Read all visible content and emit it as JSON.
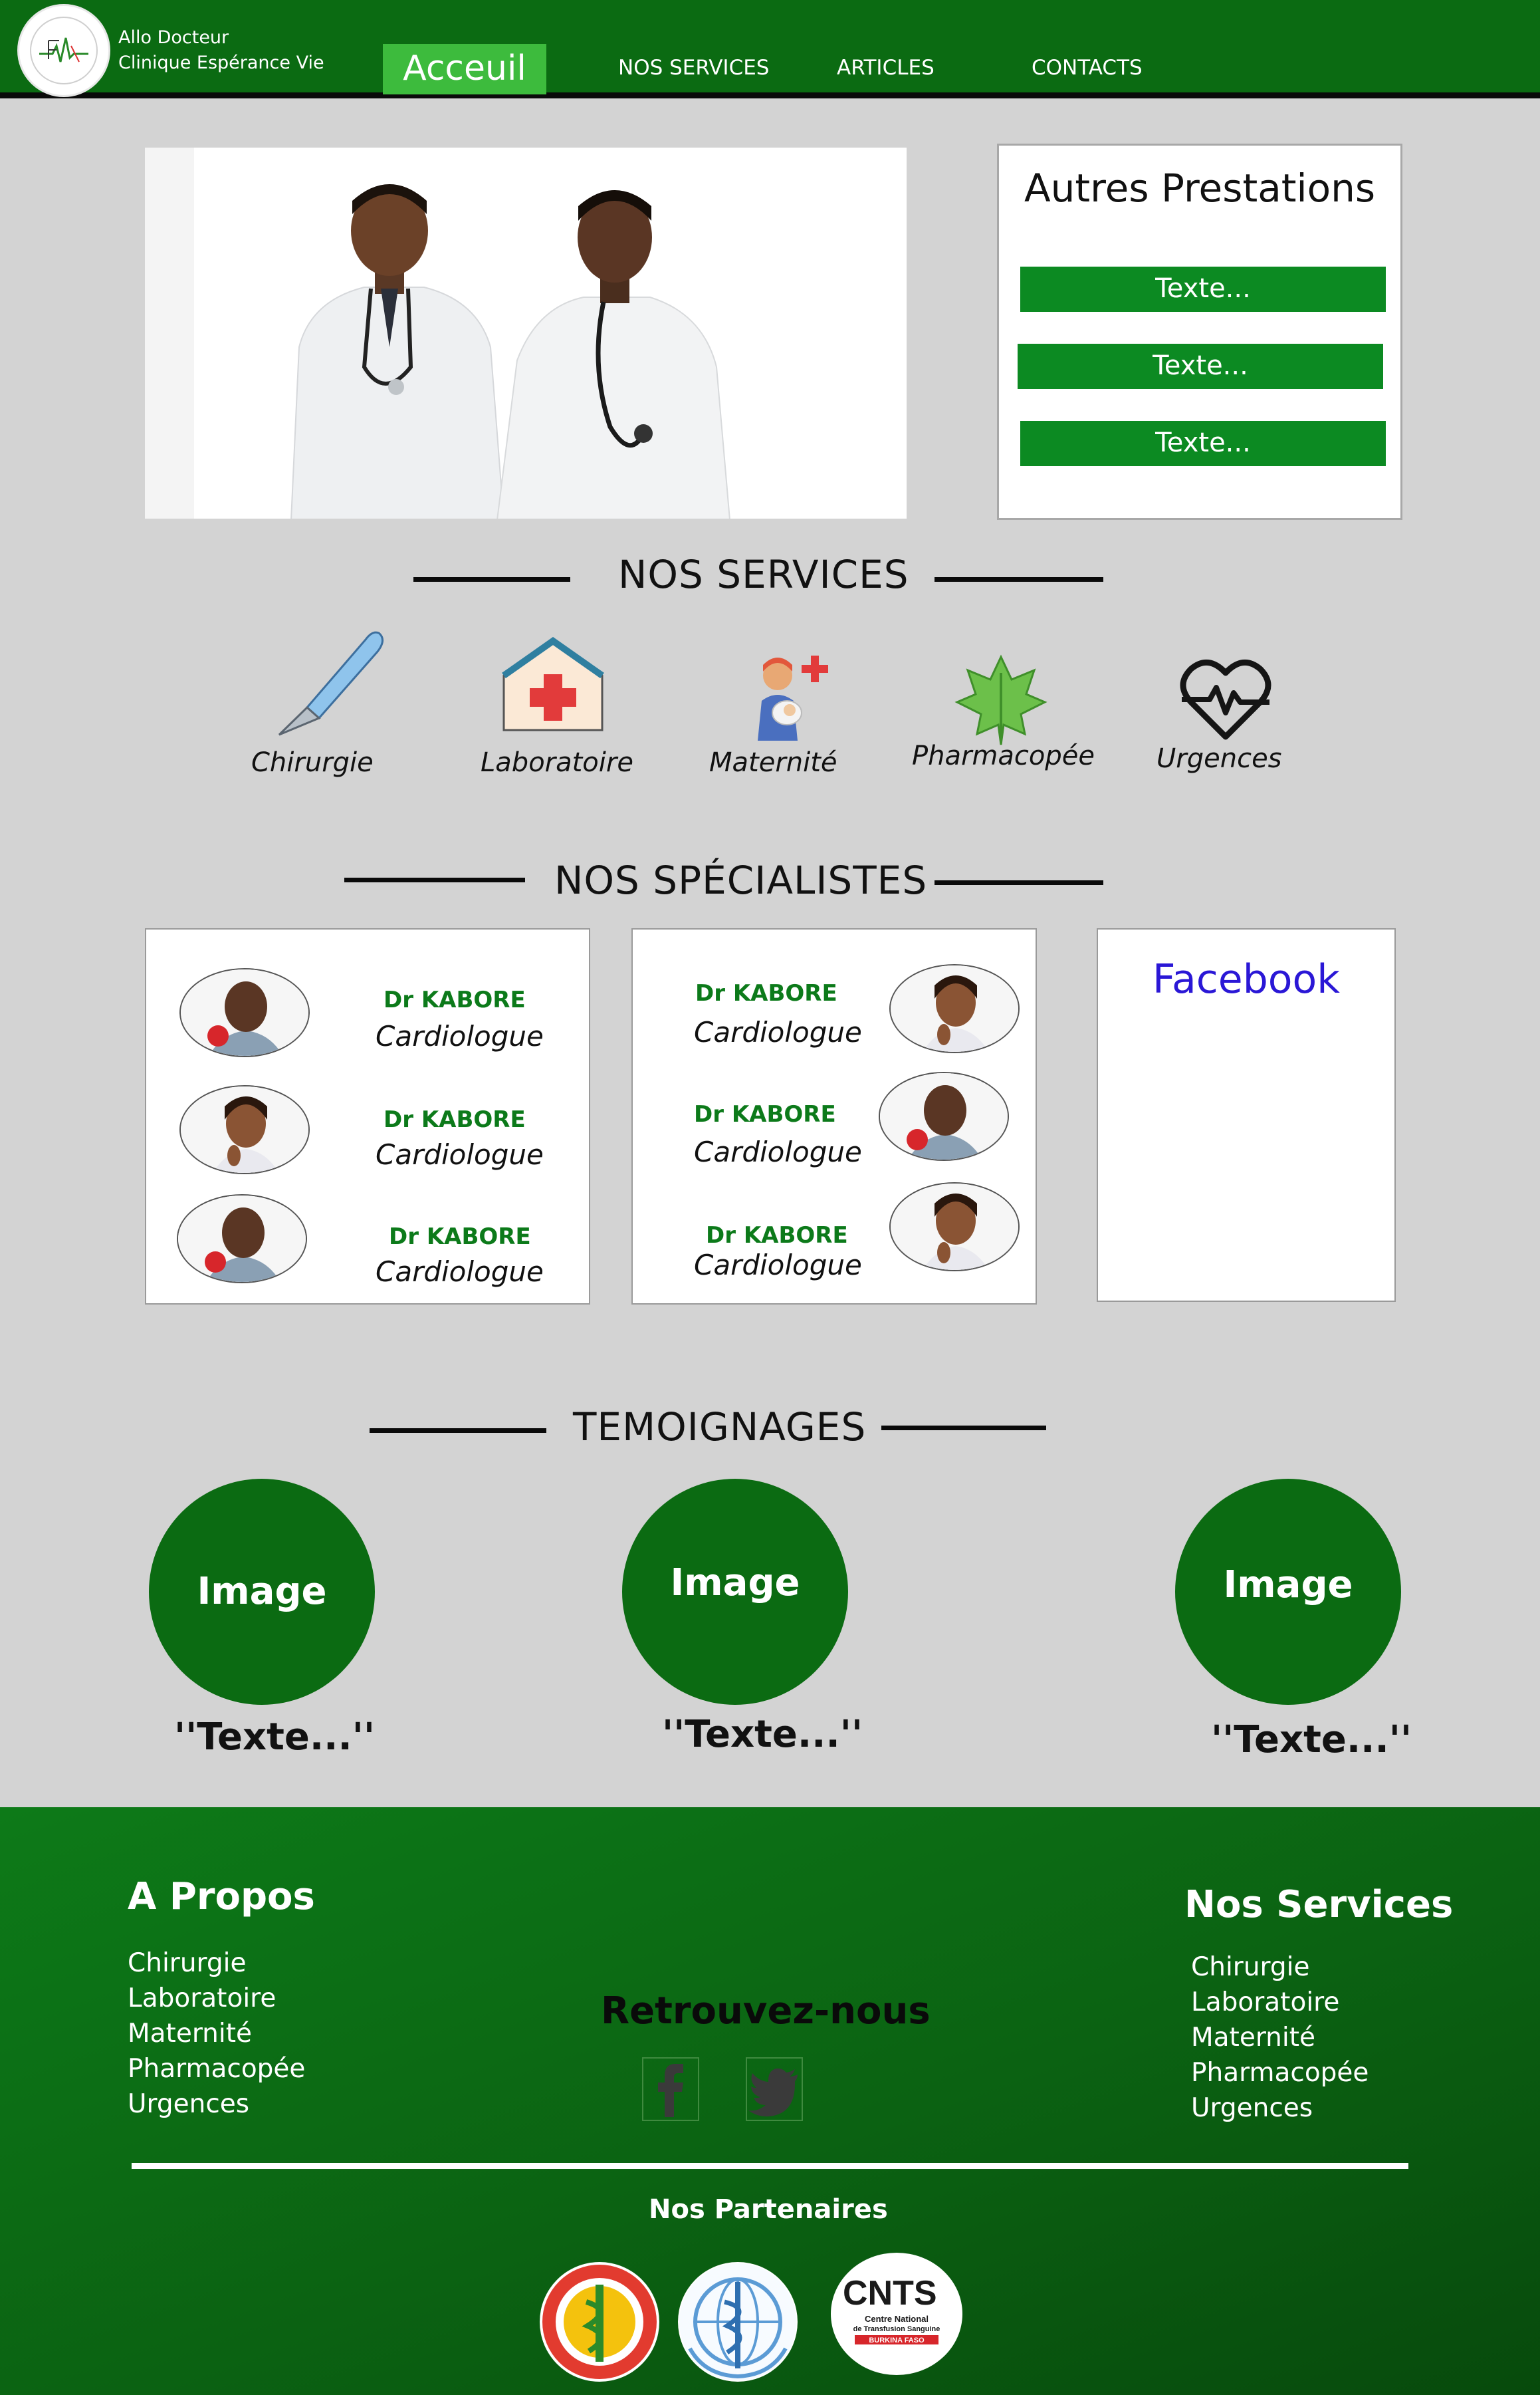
{
  "header": {
    "brand_line1": "Allo Docteur",
    "brand_line2": "Clinique Espérance Vie",
    "nav": {
      "home": "Acceuil",
      "services": "NOS SERVICES",
      "articles": "ARTICLES",
      "contacts": "CONTACTS"
    },
    "colors": {
      "header": "#0b6b12",
      "active_tab": "#3dbb3d"
    }
  },
  "prestations": {
    "title": "Autres Prestations",
    "buttons": [
      "Texte...",
      "Texte...",
      "Texte..."
    ]
  },
  "services": {
    "title": "NOS SERVICES",
    "items": [
      {
        "label": "Chirurgie",
        "icon": "scalpel-icon"
      },
      {
        "label": "Laboratoire",
        "icon": "hospital-icon"
      },
      {
        "label": "Maternité",
        "icon": "mother-baby-icon"
      },
      {
        "label": "Pharmacopée",
        "icon": "leaf-icon"
      },
      {
        "label": "Urgences",
        "icon": "heartbeat-icon"
      }
    ]
  },
  "specialists": {
    "title": "NOS SPÉCIALISTES",
    "left": [
      {
        "name": "Dr KABORE",
        "role": "Cardiologue"
      },
      {
        "name": "Dr KABORE",
        "role": "Cardiologue"
      },
      {
        "name": "Dr KABORE",
        "role": "Cardiologue"
      }
    ],
    "right": [
      {
        "name": "Dr KABORE",
        "role": "Cardiologue"
      },
      {
        "name": "Dr KABORE",
        "role": "Cardiologue"
      },
      {
        "name": "Dr KABORE",
        "role": "Cardiologue"
      }
    ],
    "facebook_label": "Facebook"
  },
  "testimonials": {
    "title": "TEMOIGNAGES",
    "items": [
      {
        "image_label": "Image",
        "text": "''Texte...''"
      },
      {
        "image_label": "Image",
        "text": "''Texte...''"
      },
      {
        "image_label": "Image",
        "text": "''Texte...''"
      }
    ]
  },
  "footer": {
    "about_title": "A Propos",
    "about_links": [
      "Chirurgie",
      "Laboratoire",
      "Maternité",
      "Pharmacopée",
      "Urgences"
    ],
    "follow_title": "Retrouvez-nous",
    "services_title": "Nos Services",
    "services_links": [
      "Chirurgie",
      "Laboratoire",
      "Maternité",
      "Pharmacopée",
      "Urgences"
    ],
    "partners_title": "Nos Partenaires",
    "partner3_name": "CNTS",
    "partner3_line1": "Centre National",
    "partner3_line2": "de Transfusion Sanguine",
    "partner3_line3": "BURKINA FASO"
  }
}
